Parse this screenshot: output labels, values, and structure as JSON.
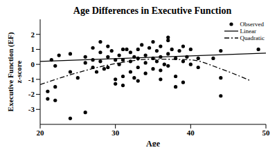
{
  "chart_data": {
    "type": "scatter",
    "title": "Age Differences in Executive Function",
    "x_label": "Age",
    "y_label": "Executive Function (EF)\nz-score",
    "xlim": [
      20,
      50
    ],
    "xticks": [
      20,
      30,
      40,
      50
    ],
    "ylim": [
      -4,
      3
    ],
    "yticks": [
      -3,
      -2,
      -1,
      0,
      1,
      2
    ],
    "legend": "upper right",
    "grid": false,
    "series": [
      {
        "name": "Observed",
        "type": "scatter",
        "marker": "circle",
        "color": "#000000",
        "x": [
          21,
          21,
          21.5,
          22,
          22,
          22.5,
          22,
          24,
          24,
          24,
          26,
          26,
          26,
          27,
          27,
          27.5,
          28,
          28,
          28,
          28.5,
          29,
          29,
          29,
          29.5,
          30,
          30,
          30,
          30.5,
          30.5,
          31,
          31,
          31,
          31.5,
          32,
          32,
          32,
          32.5,
          32.5,
          33,
          33,
          33,
          33.5,
          34,
          34,
          34,
          34.5,
          35,
          35,
          35,
          35.5,
          35.5,
          36,
          36,
          36,
          36.5,
          37,
          37,
          37,
          37,
          37.5,
          38,
          38,
          38.5,
          39,
          39,
          39.5,
          40,
          40,
          41,
          41,
          43,
          44,
          44,
          44,
          49,
          25,
          27,
          31,
          33,
          36,
          38,
          39
        ],
        "values": [
          -1.8,
          -2.3,
          0.3,
          -1.5,
          -2.4,
          0.6,
          -0.1,
          -3.6,
          0.7,
          -0.5,
          -3.2,
          0.5,
          0.1,
          -0.2,
          1.1,
          -0.5,
          0.8,
          1.5,
          0.2,
          -0.3,
          1.2,
          0.5,
          -0.2,
          0.9,
          0.3,
          -1.0,
          -1.3,
          0.0,
          0.6,
          1.0,
          -0.8,
          0.3,
          1.0,
          0.8,
          -0.5,
          0.2,
          0.5,
          -0.9,
          1.0,
          0.4,
          -0.2,
          1.3,
          0.6,
          0.1,
          -0.6,
          1.1,
          1.5,
          0.4,
          -0.3,
          0.9,
          0.2,
          1.2,
          0.5,
          -0.4,
          0.0,
          1.8,
          1.6,
          0.7,
          -0.1,
          1.0,
          0.4,
          -0.8,
          0.9,
          0.2,
          1.2,
          0.5,
          1.0,
          0.0,
          0.4,
          -0.2,
          0.4,
          0.9,
          -0.9,
          -2.1,
          1.0,
          -0.9,
          0.3,
          -1.4,
          -1.1,
          -1.0,
          -1.5,
          -1.2
        ]
      },
      {
        "name": "Linear",
        "type": "line",
        "line_style": "solid",
        "color": "#000000",
        "x": [
          20,
          50
        ],
        "values": [
          0.2,
          0.75
        ]
      },
      {
        "name": "Quadratic",
        "type": "line",
        "line_style": "dashdot",
        "color": "#000000",
        "x": [
          20,
          25,
          30,
          35,
          40,
          44,
          48
        ],
        "values": [
          -1.35,
          -0.55,
          0.05,
          0.35,
          0.3,
          -0.3,
          -1.1
        ]
      }
    ]
  }
}
